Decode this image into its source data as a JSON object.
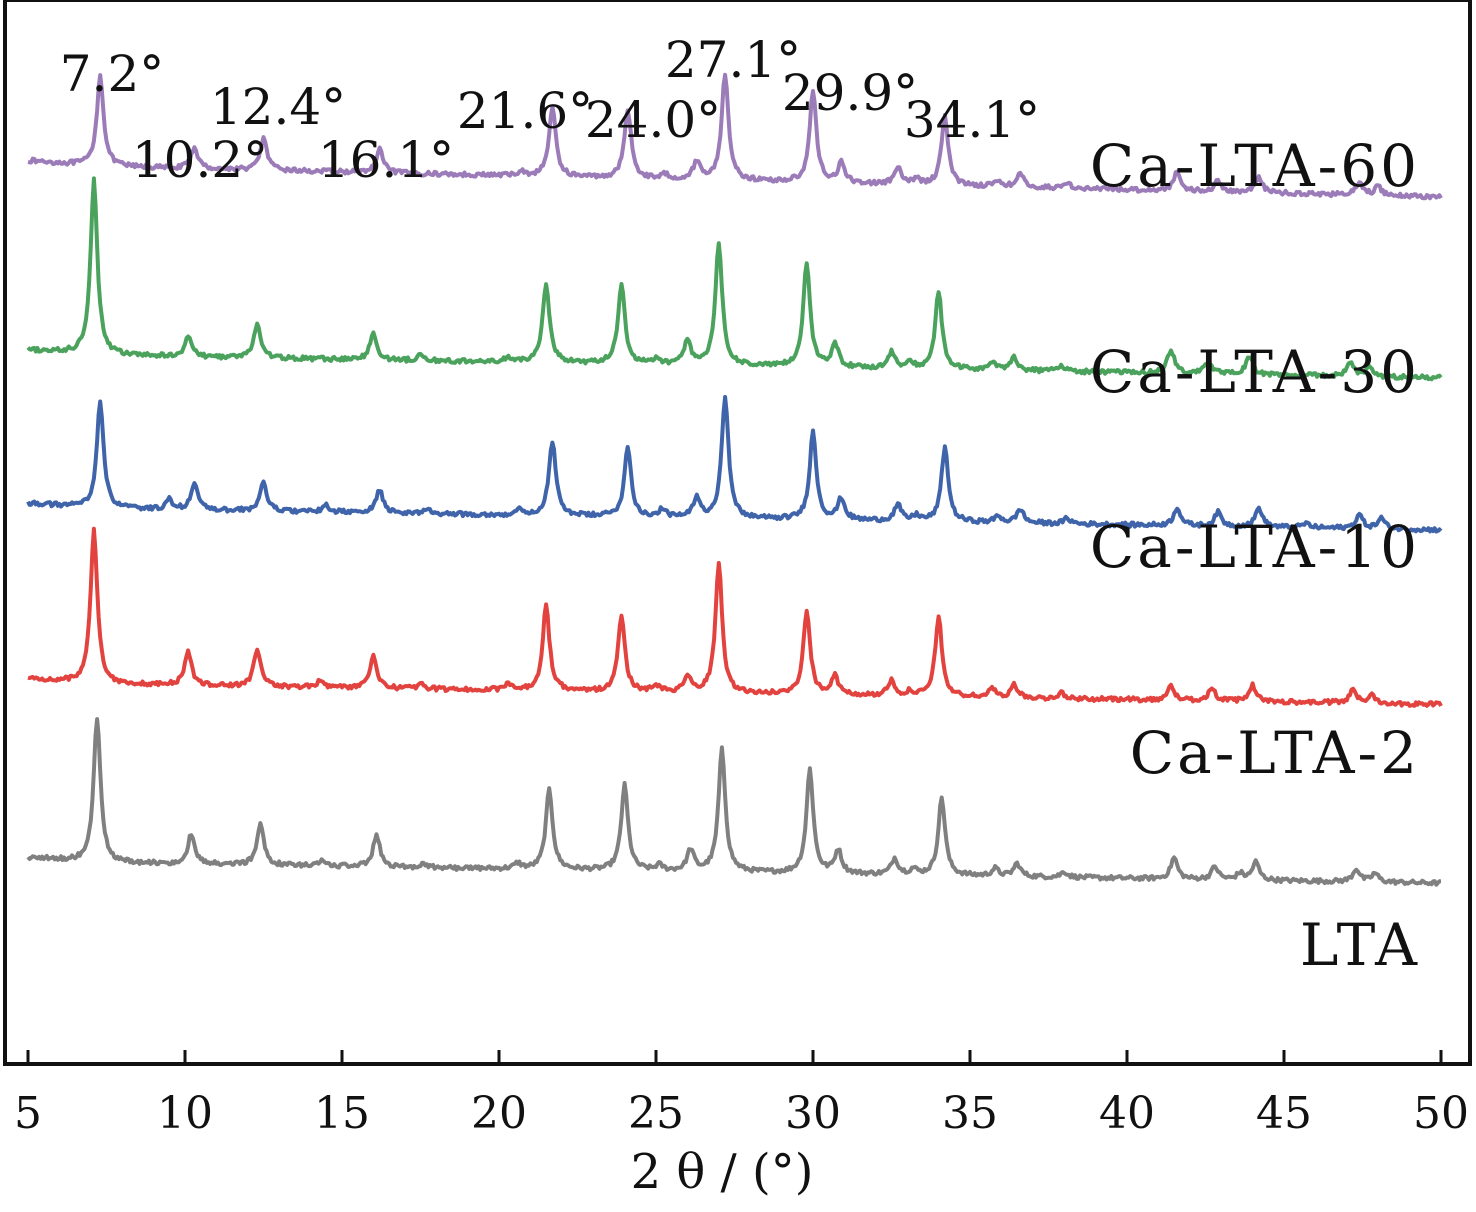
{
  "chart_data": {
    "type": "line",
    "title": "",
    "xlabel": "2 θ / (°)",
    "ylabel": "",
    "xlim": [
      5,
      50
    ],
    "x_ticks": [
      5,
      10,
      15,
      20,
      25,
      30,
      35,
      40,
      45,
      50
    ],
    "y_axis_values_shown": false,
    "grid": false,
    "legend": "none",
    "peak_annotations": [
      "7.2°",
      "10.2°",
      "12.4°",
      "16.1°",
      "21.6°",
      "24.0°",
      "27.1°",
      "29.9°",
      "34.1°"
    ],
    "series": [
      {
        "name": "Ca-LTA-60",
        "color": "#9b7bb8",
        "shift": 0.1,
        "baseline_start": 0.845,
        "baseline_end": 0.815,
        "peaks": [
          [
            7.2,
            0.085
          ],
          [
            10.2,
            0.02
          ],
          [
            12.4,
            0.03
          ],
          [
            16.1,
            0.022
          ],
          [
            20.6,
            0.004
          ],
          [
            21.6,
            0.065
          ],
          [
            24.0,
            0.065
          ],
          [
            25.2,
            0.004
          ],
          [
            26.2,
            0.017
          ],
          [
            27.1,
            0.1
          ],
          [
            29.9,
            0.085
          ],
          [
            30.8,
            0.018
          ],
          [
            32.6,
            0.015
          ],
          [
            33.2,
            0.005
          ],
          [
            34.1,
            0.065
          ],
          [
            35.8,
            0.006
          ],
          [
            36.5,
            0.012
          ],
          [
            38.0,
            0.005
          ],
          [
            41.5,
            0.018
          ],
          [
            42.8,
            0.01
          ],
          [
            44.1,
            0.015
          ],
          [
            47.3,
            0.011
          ],
          [
            47.9,
            0.008
          ]
        ]
      },
      {
        "name": "Ca-LTA-30",
        "color": "#4aa25c",
        "shift": -0.1,
        "baseline_start": 0.667,
        "baseline_end": 0.645,
        "peaks": [
          [
            7.2,
            0.165
          ],
          [
            10.2,
            0.02
          ],
          [
            12.4,
            0.032
          ],
          [
            16.1,
            0.025
          ],
          [
            17.6,
            0.005
          ],
          [
            20.4,
            0.004
          ],
          [
            21.6,
            0.075
          ],
          [
            24.0,
            0.075
          ],
          [
            25.1,
            0.005
          ],
          [
            26.1,
            0.023
          ],
          [
            27.1,
            0.115
          ],
          [
            29.9,
            0.098
          ],
          [
            30.8,
            0.022
          ],
          [
            32.6,
            0.015
          ],
          [
            33.2,
            0.005
          ],
          [
            34.1,
            0.072
          ],
          [
            35.8,
            0.007
          ],
          [
            36.5,
            0.013
          ],
          [
            38.0,
            0.006
          ],
          [
            41.5,
            0.022
          ],
          [
            42.7,
            0.012
          ],
          [
            44.0,
            0.017
          ],
          [
            47.2,
            0.013
          ],
          [
            47.8,
            0.009
          ]
        ]
      },
      {
        "name": "Ca-LTA-10",
        "color": "#3f64aa",
        "shift": 0.1,
        "baseline_start": 0.523,
        "baseline_end": 0.502,
        "peaks": [
          [
            7.2,
            0.1
          ],
          [
            9.4,
            0.009
          ],
          [
            10.2,
            0.025
          ],
          [
            12.4,
            0.027
          ],
          [
            14.4,
            0.006
          ],
          [
            16.1,
            0.022
          ],
          [
            17.6,
            0.004
          ],
          [
            20.6,
            0.005
          ],
          [
            21.6,
            0.07
          ],
          [
            24.0,
            0.065
          ],
          [
            25.1,
            0.007
          ],
          [
            26.2,
            0.018
          ],
          [
            27.1,
            0.115
          ],
          [
            29.9,
            0.082
          ],
          [
            30.8,
            0.02
          ],
          [
            32.6,
            0.015
          ],
          [
            33.2,
            0.005
          ],
          [
            34.1,
            0.07
          ],
          [
            35.8,
            0.006
          ],
          [
            36.5,
            0.013
          ],
          [
            38.0,
            0.005
          ],
          [
            41.5,
            0.017
          ],
          [
            42.8,
            0.013
          ],
          [
            44.1,
            0.018
          ],
          [
            45.6,
            0.004
          ],
          [
            47.3,
            0.013
          ],
          [
            48.0,
            0.01
          ]
        ]
      },
      {
        "name": "Ca-LTA-2",
        "color": "#e2433f",
        "shift": -0.1,
        "baseline_start": 0.358,
        "baseline_end": 0.338,
        "peaks": [
          [
            7.2,
            0.145
          ],
          [
            10.2,
            0.032
          ],
          [
            12.4,
            0.035
          ],
          [
            14.4,
            0.006
          ],
          [
            16.1,
            0.03
          ],
          [
            17.6,
            0.004
          ],
          [
            20.4,
            0.005
          ],
          [
            21.6,
            0.08
          ],
          [
            24.0,
            0.072
          ],
          [
            25.1,
            0.006
          ],
          [
            26.1,
            0.015
          ],
          [
            27.1,
            0.12
          ],
          [
            29.9,
            0.08
          ],
          [
            30.8,
            0.017
          ],
          [
            32.6,
            0.014
          ],
          [
            33.2,
            0.004
          ],
          [
            34.1,
            0.075
          ],
          [
            35.8,
            0.008
          ],
          [
            36.5,
            0.012
          ],
          [
            38.0,
            0.005
          ],
          [
            41.5,
            0.013
          ],
          [
            42.8,
            0.012
          ],
          [
            44.1,
            0.015
          ],
          [
            47.3,
            0.012
          ],
          [
            47.9,
            0.008
          ]
        ]
      },
      {
        "name": "LTA",
        "color": "#808080",
        "shift": 0.0,
        "baseline_start": 0.19,
        "baseline_end": 0.17,
        "peaks": [
          [
            7.2,
            0.135
          ],
          [
            10.2,
            0.028
          ],
          [
            12.4,
            0.04
          ],
          [
            14.4,
            0.005
          ],
          [
            16.1,
            0.03
          ],
          [
            17.6,
            0.004
          ],
          [
            20.6,
            0.005
          ],
          [
            21.6,
            0.075
          ],
          [
            24.0,
            0.08
          ],
          [
            25.1,
            0.005
          ],
          [
            26.1,
            0.02
          ],
          [
            27.1,
            0.115
          ],
          [
            29.9,
            0.098
          ],
          [
            30.8,
            0.022
          ],
          [
            32.6,
            0.015
          ],
          [
            33.2,
            0.005
          ],
          [
            34.1,
            0.073
          ],
          [
            35.8,
            0.007
          ],
          [
            36.5,
            0.012
          ],
          [
            38.0,
            0.005
          ],
          [
            41.5,
            0.02
          ],
          [
            42.8,
            0.012
          ],
          [
            43.6,
            0.006
          ],
          [
            44.1,
            0.017
          ],
          [
            47.3,
            0.012
          ],
          [
            47.9,
            0.008
          ]
        ]
      }
    ]
  }
}
